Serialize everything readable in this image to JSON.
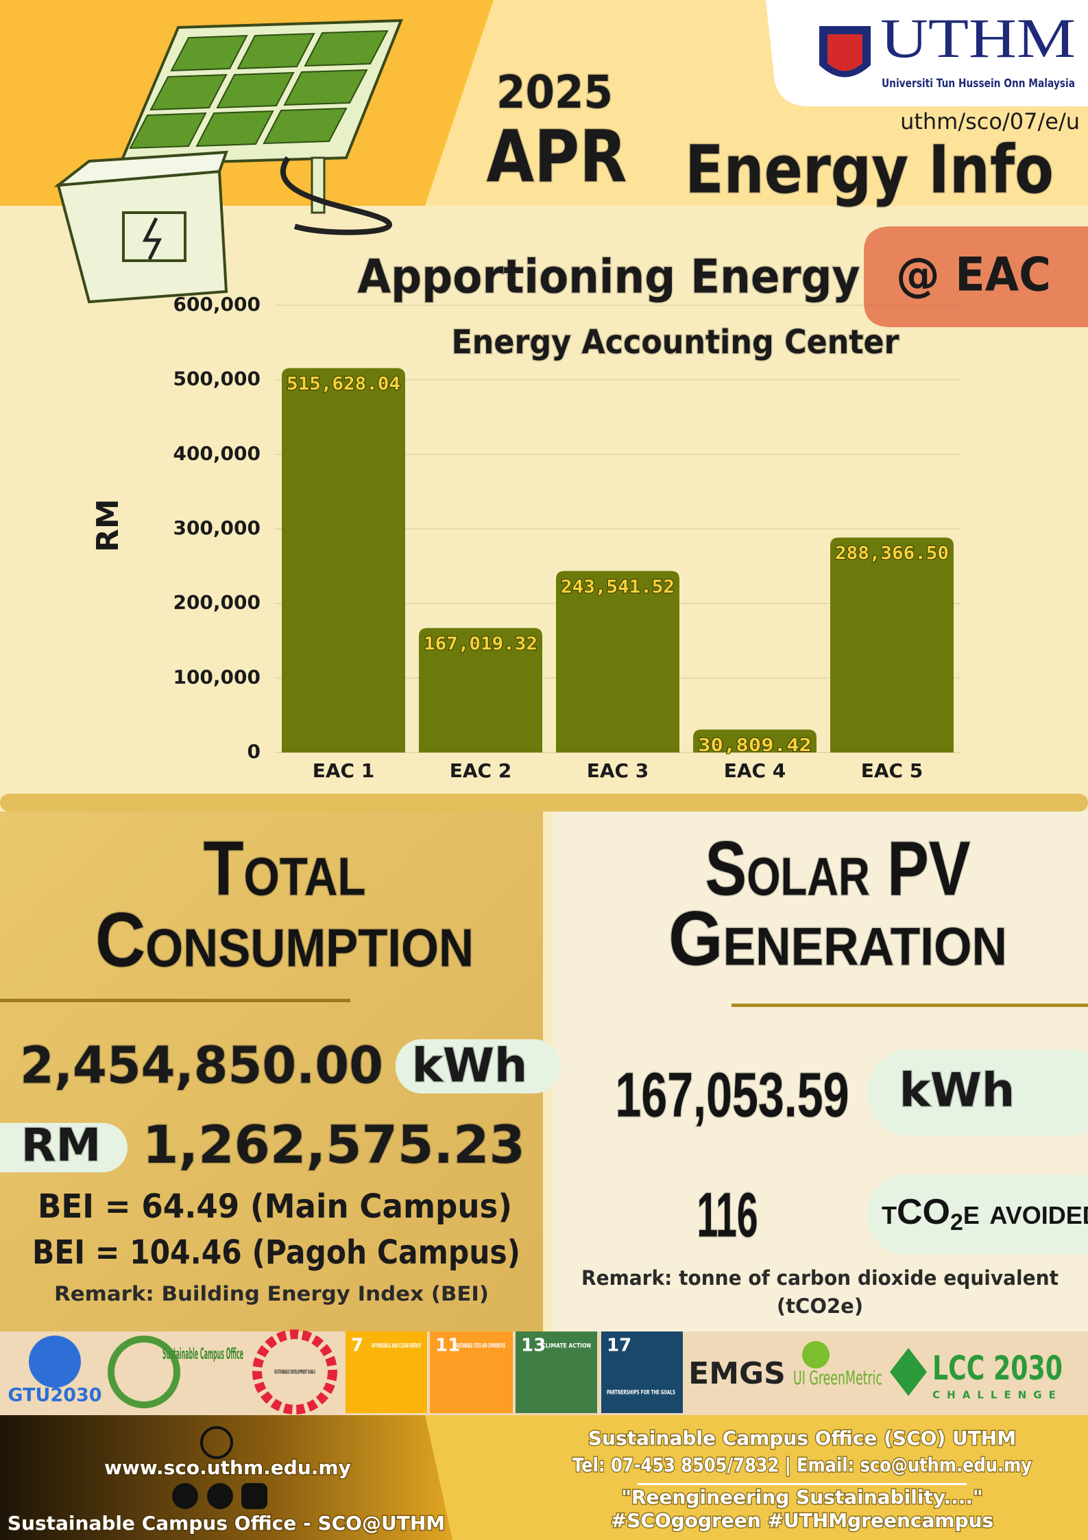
{
  "header": {
    "year": "2025",
    "month": "APR",
    "title": "Energy Info",
    "reference": "uthm/sco/07/e/u",
    "logo_name": "UTHM",
    "logo_subtitle": "Universiti Tun Hussein Onn Malaysia"
  },
  "chart_data": {
    "type": "bar",
    "title": "Apportioning Energy",
    "title_badge": "@ EAC",
    "subtitle": "Energy Accounting Center",
    "y_label": "RM",
    "categories": [
      "EAC 1",
      "EAC 2",
      "EAC 3",
      "EAC 4",
      "EAC 5"
    ],
    "values": [
      515628.04,
      167019.32,
      243541.52,
      30809.42,
      288366.5
    ],
    "value_labels": [
      "515,628.04",
      "167,019.32",
      "243,541.52",
      "30,809.42",
      "288,366.50"
    ],
    "color": "#6b7a0b",
    "ylim": [
      0,
      600000
    ],
    "yticks": [
      0,
      {
        "value": 100000,
        "label": "100,000"
      },
      {
        "value": 200000,
        "label": "200,000"
      },
      {
        "value": 300000,
        "label": "300,000"
      },
      {
        "value": 400000,
        "label": "400,000"
      },
      {
        "value": 500000,
        "label": "500,000"
      },
      {
        "value": 600000,
        "label": "600,000"
      }
    ],
    "grid": true
  },
  "total_consumption": {
    "title_line1": "Total",
    "title_line2": "Consumption",
    "kwh_value": "2,454,850.00",
    "kwh_unit": "kWh",
    "rm_unit": "RM",
    "rm_value": "1,262,575.23",
    "bei": [
      "BEI =  64.49 (Main Campus)",
      "BEI =  104.46 (Pagoh Campus)"
    ],
    "remark": "Remark: Building Energy Index (BEI)"
  },
  "solar_pv": {
    "title_line1": "Solar PV",
    "title_line2": "Generation",
    "kwh_value": "167,053.59",
    "kwh_unit": "kWh",
    "carbon_value": "116",
    "carbon_unit_prefix": "tCO",
    "carbon_unit_sub": "2",
    "carbon_unit_suffix": "e avoided",
    "remark": [
      "Remark: tonne of carbon dioxide equivalent",
      "(tCO2e)"
    ]
  },
  "logos": {
    "gtu": "GTU2030",
    "sco": "Sustainable Campus Office",
    "sdg_wheel": "SUSTAINABLE DEVELOPMENT GOALS",
    "sdgs": [
      {
        "number": "7",
        "label": "AFFORDABLE AND CLEAN ENERGY"
      },
      {
        "number": "11",
        "label": "SUSTAINABLE CITIES AND COMMUNITIES"
      },
      {
        "number": "13",
        "label": "CLIMATE ACTION"
      },
      {
        "number": "17",
        "label": "PARTNERSHIPS FOR THE GOALS"
      }
    ],
    "emgs": "EMGS",
    "greenmetric": "UI GreenMetric",
    "lcc": "LCC 2030",
    "lcc_sub": "CHALLENGE"
  },
  "footer": {
    "website": "www.sco.uthm.edu.my",
    "social": "Sustainable Campus Office - SCO@UTHM",
    "office": "Sustainable Campus Office (SCO) UTHM",
    "contact": "Tel: 07-453 8505/7832 | Email: sco@uthm.edu.my",
    "slogan": "\"Reengineering Sustainability....\"",
    "hashtags": "#SCOgogreen #UTHMgreencampus"
  }
}
